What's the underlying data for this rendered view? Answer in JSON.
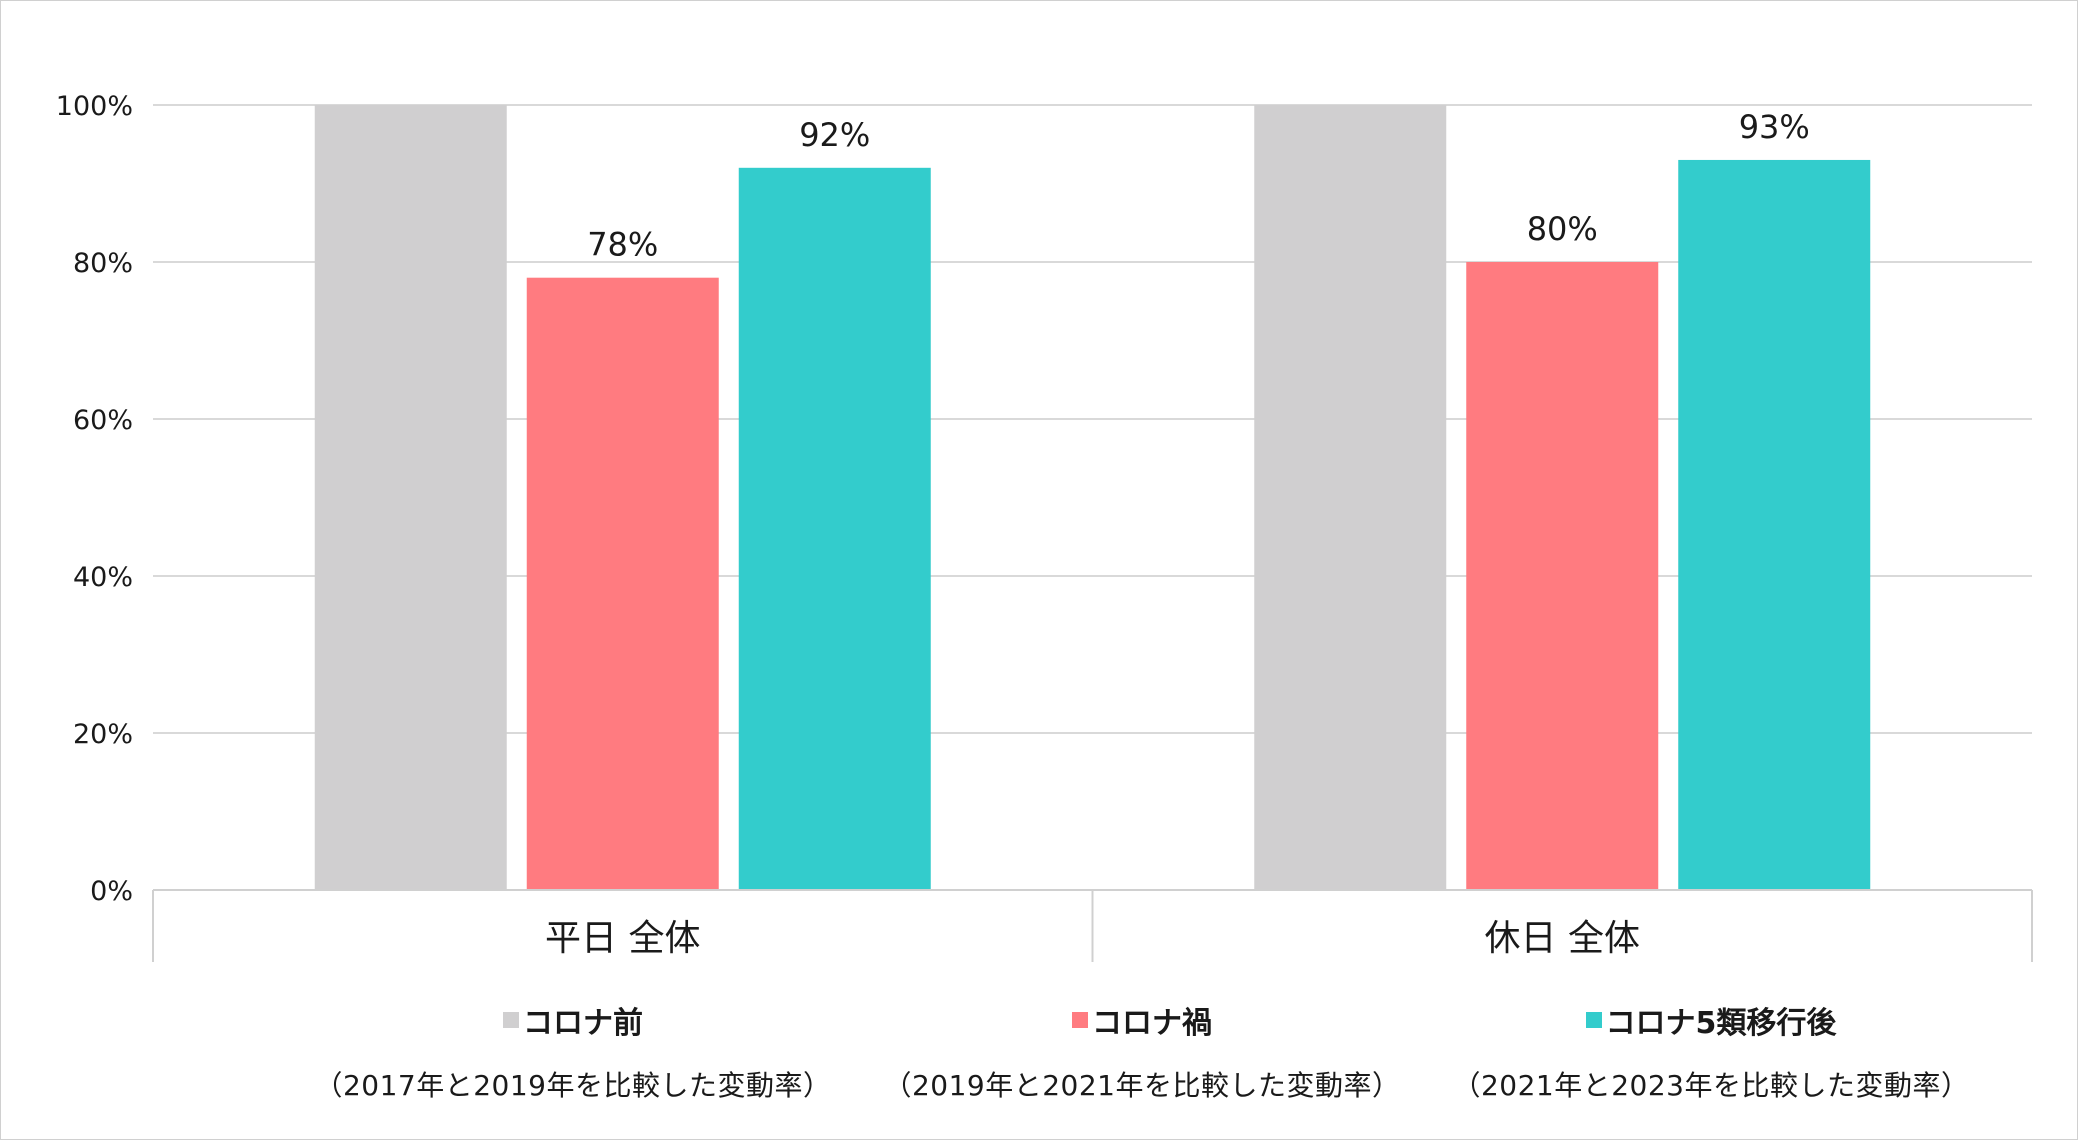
{
  "chart_data": {
    "type": "bar",
    "categories": [
      "平日 全体",
      "休日 全体"
    ],
    "series": [
      {
        "name": "コロナ前",
        "note": "（2017年と2019年を比較した変動率）",
        "color": "#d0cfd0",
        "values": [
          100,
          100
        ],
        "labels": [
          "",
          ""
        ]
      },
      {
        "name": "コロナ禍",
        "note": "（2019年と2021年を比較した変動率）",
        "color": "#ff7b80",
        "values": [
          78,
          80
        ],
        "labels": [
          "78%",
          "80%"
        ]
      },
      {
        "name": "コロナ5類移行後",
        "note": "（2021年と2023年を比較した変動率）",
        "color": "#33cccc",
        "values": [
          92,
          93
        ],
        "labels": [
          "92%",
          "93%"
        ]
      }
    ],
    "yticks": [
      "0%",
      "20%",
      "40%",
      "60%",
      "80%",
      "100%"
    ],
    "ylim": [
      0,
      100
    ],
    "grid": true,
    "legend": "bottom"
  }
}
